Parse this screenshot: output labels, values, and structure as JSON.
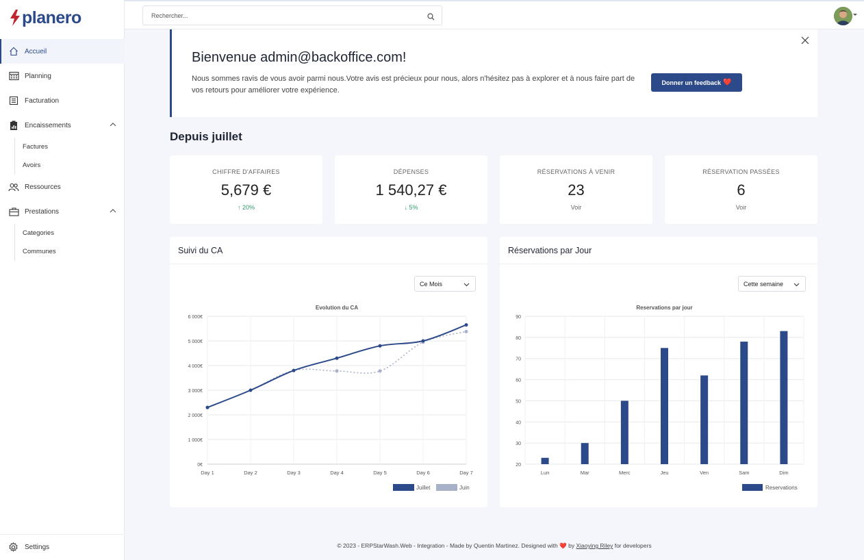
{
  "app": {
    "logo_text": "planero",
    "brand_color": "#2c4a8a"
  },
  "search": {
    "placeholder": "Rechercher..."
  },
  "sidebar": {
    "items": [
      {
        "label": "Accueil",
        "icon": "home-icon",
        "active": true
      },
      {
        "label": "Planning",
        "icon": "calendar-icon"
      },
      {
        "label": "Facturation",
        "icon": "invoice-icon"
      },
      {
        "label": "Encaissements",
        "icon": "clipboard-icon",
        "expanded": true,
        "children": [
          "Factures",
          "Avoirs"
        ]
      },
      {
        "label": "Ressources",
        "icon": "users-icon"
      },
      {
        "label": "Prestations",
        "icon": "briefcase-icon",
        "expanded": true,
        "children": [
          "Categories",
          "Communes"
        ]
      }
    ],
    "settings_label": "Settings"
  },
  "welcome": {
    "title": "Bienvenue admin@backoffice.com!",
    "text": "Nous sommes ravis de vous avoir parmi nous.Votre avis est précieux pour nous, alors n'hésitez pas à explorer et à nous faire part de vos retours pour améliorer votre expérience.",
    "button_label": "Donner un feedback",
    "button_emoji": "❤️"
  },
  "section_title": "Depuis juillet",
  "stats": [
    {
      "label": "CHIFFRE D'AFFAIRES",
      "value": "5,679 €",
      "trend": "↑ 20%",
      "trend_type": "up"
    },
    {
      "label": "DÉPENSES",
      "value": "1 540,27 €",
      "trend": "↓ 5%",
      "trend_type": "down"
    },
    {
      "label": "RÉSERVATIONS À VENIR",
      "value": "23",
      "trend": "Voir",
      "trend_type": "link"
    },
    {
      "label": "RÉSERVATION PASSÉES",
      "value": "6",
      "trend": "Voir",
      "trend_type": "link"
    }
  ],
  "ca_card": {
    "title": "Suivi du CA",
    "select_value": "Ce Mois"
  },
  "res_card": {
    "title": "Réservations par Jour",
    "select_value": "Cette semaine"
  },
  "chart_data": [
    {
      "type": "line",
      "title": "Evolution du CA",
      "categories": [
        "Day 1",
        "Day 2",
        "Day 3",
        "Day 4",
        "Day 5",
        "Day 6",
        "Day 7"
      ],
      "y_tick_labels": [
        "0€",
        "1 000€",
        "2 000€",
        "3 000€",
        "4 000€",
        "5 000€",
        "6 000€"
      ],
      "ylim": [
        0,
        6000
      ],
      "series": [
        {
          "name": "Juillet",
          "color": "#2c4a8a",
          "values": [
            2300,
            3000,
            3800,
            4300,
            4800,
            5000,
            5650
          ]
        },
        {
          "name": "Juin",
          "color": "#a7b1c8",
          "values": [
            2300,
            3000,
            3800,
            3780,
            3780,
            4950,
            5380
          ]
        }
      ],
      "legend": "bottom-right",
      "grid": true
    },
    {
      "type": "bar",
      "title": "Reservations par jour",
      "categories": [
        "Lun",
        "Mar",
        "Merc",
        "Jeu",
        "Ven",
        "Sam",
        "Dim"
      ],
      "series": [
        {
          "name": "Reservations",
          "color": "#2c4a8a",
          "values": [
            23,
            30,
            50,
            75,
            62,
            78,
            83
          ]
        }
      ],
      "y_ticks": [
        20,
        30,
        40,
        50,
        60,
        70,
        80,
        90
      ],
      "ylim": [
        20,
        90
      ],
      "legend": "bottom-right",
      "grid": true
    }
  ],
  "footer": {
    "text_before": "© 2023 - ERPStarWash.Web - Integration - Made by Quentin Martinez. Designed with",
    "heart": "❤️",
    "text_by": "by",
    "link": "Xiaoying Riley",
    "text_after": "for developers"
  }
}
